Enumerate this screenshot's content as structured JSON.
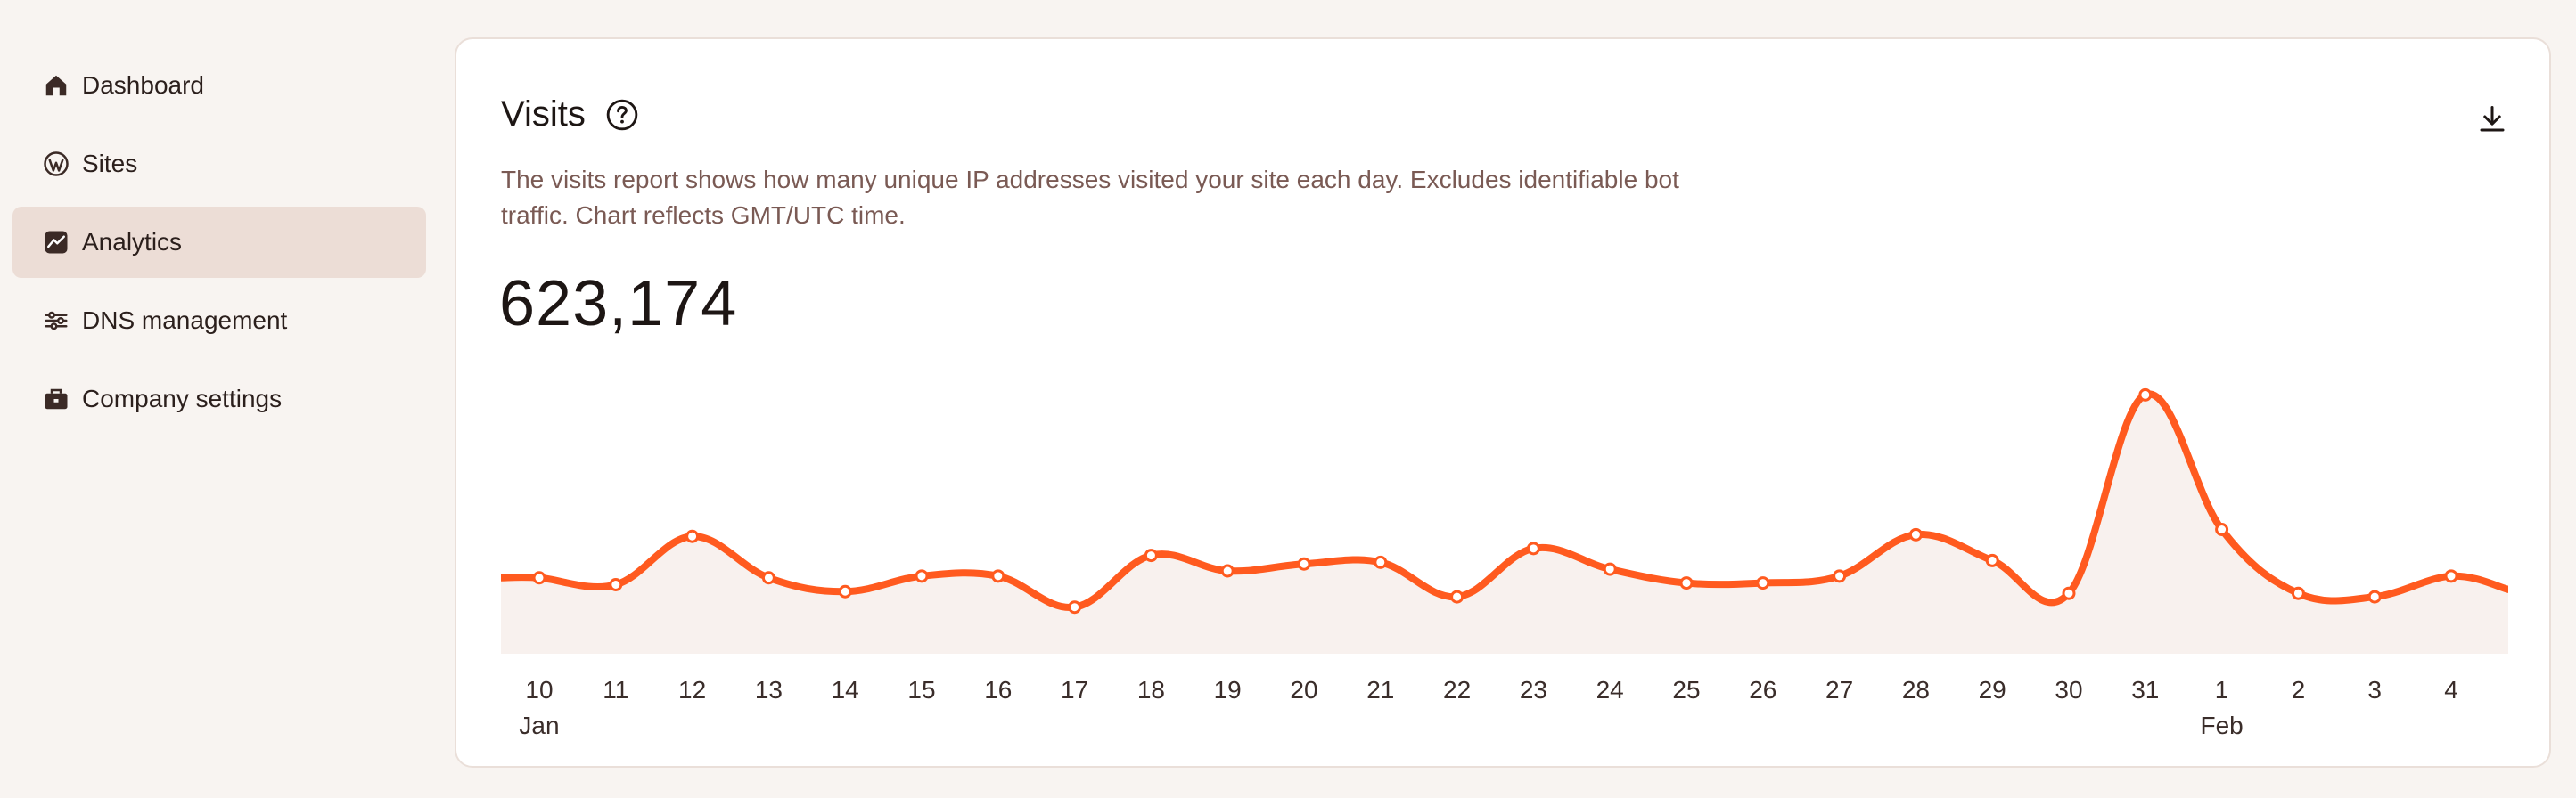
{
  "sidebar": {
    "items": [
      {
        "label": "Dashboard",
        "icon": "home-icon",
        "active": false
      },
      {
        "label": "Sites",
        "icon": "wordpress-icon",
        "active": false
      },
      {
        "label": "Analytics",
        "icon": "analytics-icon",
        "active": true
      },
      {
        "label": "DNS management",
        "icon": "dns-icon",
        "active": false
      },
      {
        "label": "Company settings",
        "icon": "briefcase-icon",
        "active": false
      }
    ]
  },
  "card": {
    "title": "Visits",
    "description": "The visits report shows how many unique IP addresses visited your site each day. Excludes identifiable bot traffic. Chart reflects GMT/UTC time.",
    "total": "623,174"
  },
  "colors": {
    "accent": "#ff5a1f",
    "fill": "#f8f1ee",
    "active_nav": "#ecddd6",
    "background": "#f8f4f1"
  },
  "chart_data": {
    "type": "area",
    "x": [
      "2024-01-10",
      "2024-01-11",
      "2024-01-12",
      "2024-01-13",
      "2024-01-14",
      "2024-01-15",
      "2024-01-16",
      "2024-01-17",
      "2024-01-18",
      "2024-01-19",
      "2024-01-20",
      "2024-01-21",
      "2024-01-22",
      "2024-01-23",
      "2024-01-24",
      "2024-01-25",
      "2024-01-26",
      "2024-01-27",
      "2024-01-28",
      "2024-01-29",
      "2024-01-30",
      "2024-01-31",
      "2024-02-01",
      "2024-02-02",
      "2024-02-03",
      "2024-02-04"
    ],
    "tick_labels": [
      "10",
      "11",
      "12",
      "13",
      "14",
      "15",
      "16",
      "17",
      "18",
      "19",
      "20",
      "21",
      "22",
      "23",
      "24",
      "25",
      "26",
      "27",
      "28",
      "29",
      "30",
      "31",
      "1",
      "2",
      "3",
      "4"
    ],
    "month_labels": [
      {
        "index": 0,
        "label": "Jan"
      },
      {
        "index": 22,
        "label": "Feb"
      }
    ],
    "values": [
      22000,
      20000,
      34000,
      22000,
      18000,
      22500,
      22500,
      13500,
      28500,
      24000,
      26000,
      26500,
      16500,
      30500,
      24500,
      20500,
      20500,
      22500,
      34500,
      27000,
      17500,
      75000,
      36000,
      17500,
      16500,
      22500
    ],
    "ylim": [
      0,
      80000
    ],
    "grid": false,
    "legend": "none"
  }
}
